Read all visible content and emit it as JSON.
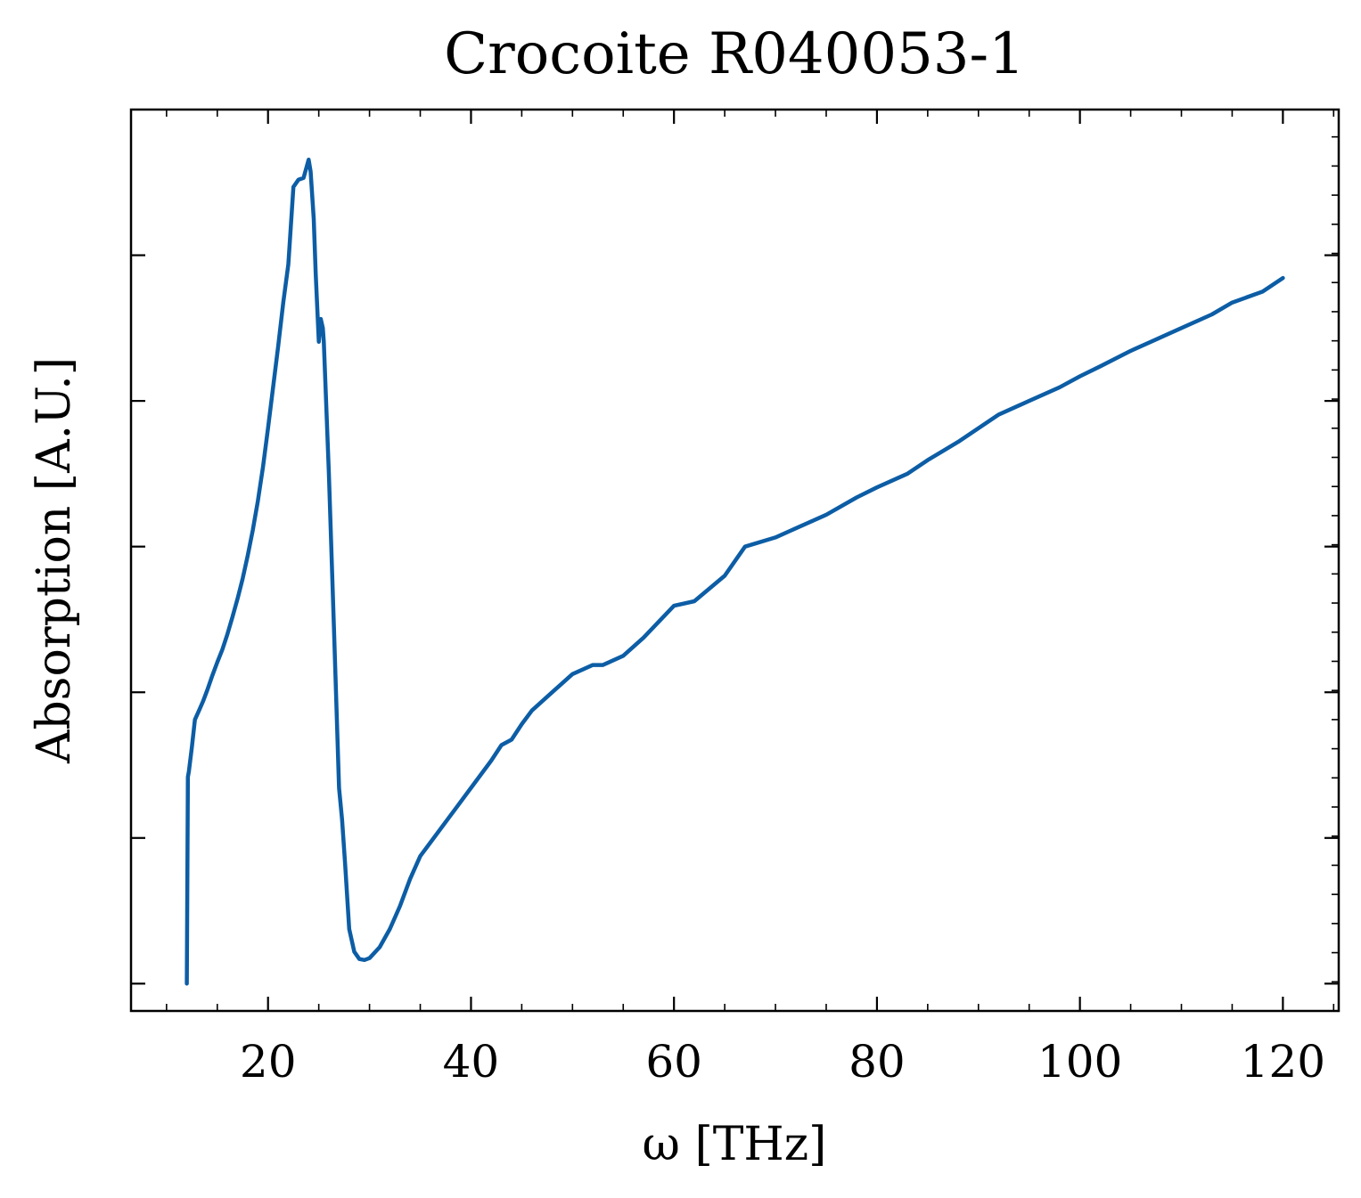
{
  "chart_data": {
    "type": "line",
    "title": "Crocoite R040053-1",
    "xlabel": "ω [THz]",
    "ylabel": "Absorption [A.U.]",
    "xlim": [
      6.5,
      125.5
    ],
    "ylim": [
      -0.03,
      0.96
    ],
    "xticks": [
      20,
      40,
      60,
      80,
      100,
      120
    ],
    "xtick_labels": [
      "20",
      "40",
      "60",
      "80",
      "100",
      "120"
    ],
    "yticks": [
      0.0,
      0.16,
      0.32,
      0.48,
      0.64,
      0.8
    ],
    "ytick_labels": [
      "",
      "",
      "",
      "",
      "",
      ""
    ],
    "grid": false,
    "line_color": "#0c5da5",
    "series": [
      {
        "x": [
          12.0,
          12.1,
          12.2,
          12.5,
          12.8,
          13.0,
          13.2,
          13.6,
          14.0,
          14.5,
          15.0,
          15.5,
          16.0,
          16.5,
          17.0,
          17.5,
          18.0,
          18.5,
          19.0,
          19.5,
          20.0,
          20.5,
          21.0,
          21.5,
          22.0,
          22.5,
          23.0,
          23.5,
          24.0,
          24.2,
          24.5,
          24.7,
          25.0,
          25.2,
          25.4,
          25.5,
          26.0,
          26.5,
          27.0,
          27.3,
          27.6,
          28.0,
          28.5,
          29.0,
          29.5,
          30.0,
          31.0,
          32.0,
          33.0,
          34.0,
          35.0,
          36.0,
          38.0,
          40.0,
          42.0,
          43.0,
          44.0,
          45.0,
          46.0,
          48.0,
          50.0,
          52.0,
          53.0,
          55.0,
          57.0,
          60.0,
          62.0,
          65.0,
          67.0,
          70.0,
          72.0,
          75.0,
          78.0,
          80.0,
          83.0,
          85.0,
          88.0,
          90.0,
          92.0,
          95.0,
          98.0,
          100.0,
          102.0,
          105.0,
          108.0,
          110.0,
          113.0,
          115.0,
          118.0,
          120.0
        ],
        "y": [
          0.0,
          0.227,
          0.233,
          0.26,
          0.29,
          0.295,
          0.3,
          0.31,
          0.322,
          0.338,
          0.353,
          0.367,
          0.384,
          0.403,
          0.423,
          0.445,
          0.47,
          0.498,
          0.53,
          0.567,
          0.61,
          0.655,
          0.7,
          0.748,
          0.79,
          0.875,
          0.883,
          0.885,
          0.905,
          0.892,
          0.84,
          0.78,
          0.705,
          0.73,
          0.72,
          0.705,
          0.56,
          0.39,
          0.215,
          0.18,
          0.13,
          0.06,
          0.035,
          0.027,
          0.026,
          0.028,
          0.04,
          0.06,
          0.085,
          0.115,
          0.14,
          0.155,
          0.185,
          0.215,
          0.245,
          0.262,
          0.268,
          0.285,
          0.3,
          0.32,
          0.34,
          0.35,
          0.35,
          0.36,
          0.38,
          0.415,
          0.42,
          0.448,
          0.48,
          0.49,
          0.5,
          0.515,
          0.534,
          0.545,
          0.56,
          0.575,
          0.595,
          0.61,
          0.625,
          0.64,
          0.655,
          0.667,
          0.678,
          0.695,
          0.71,
          0.72,
          0.735,
          0.748,
          0.76,
          0.775
        ]
      }
    ]
  }
}
